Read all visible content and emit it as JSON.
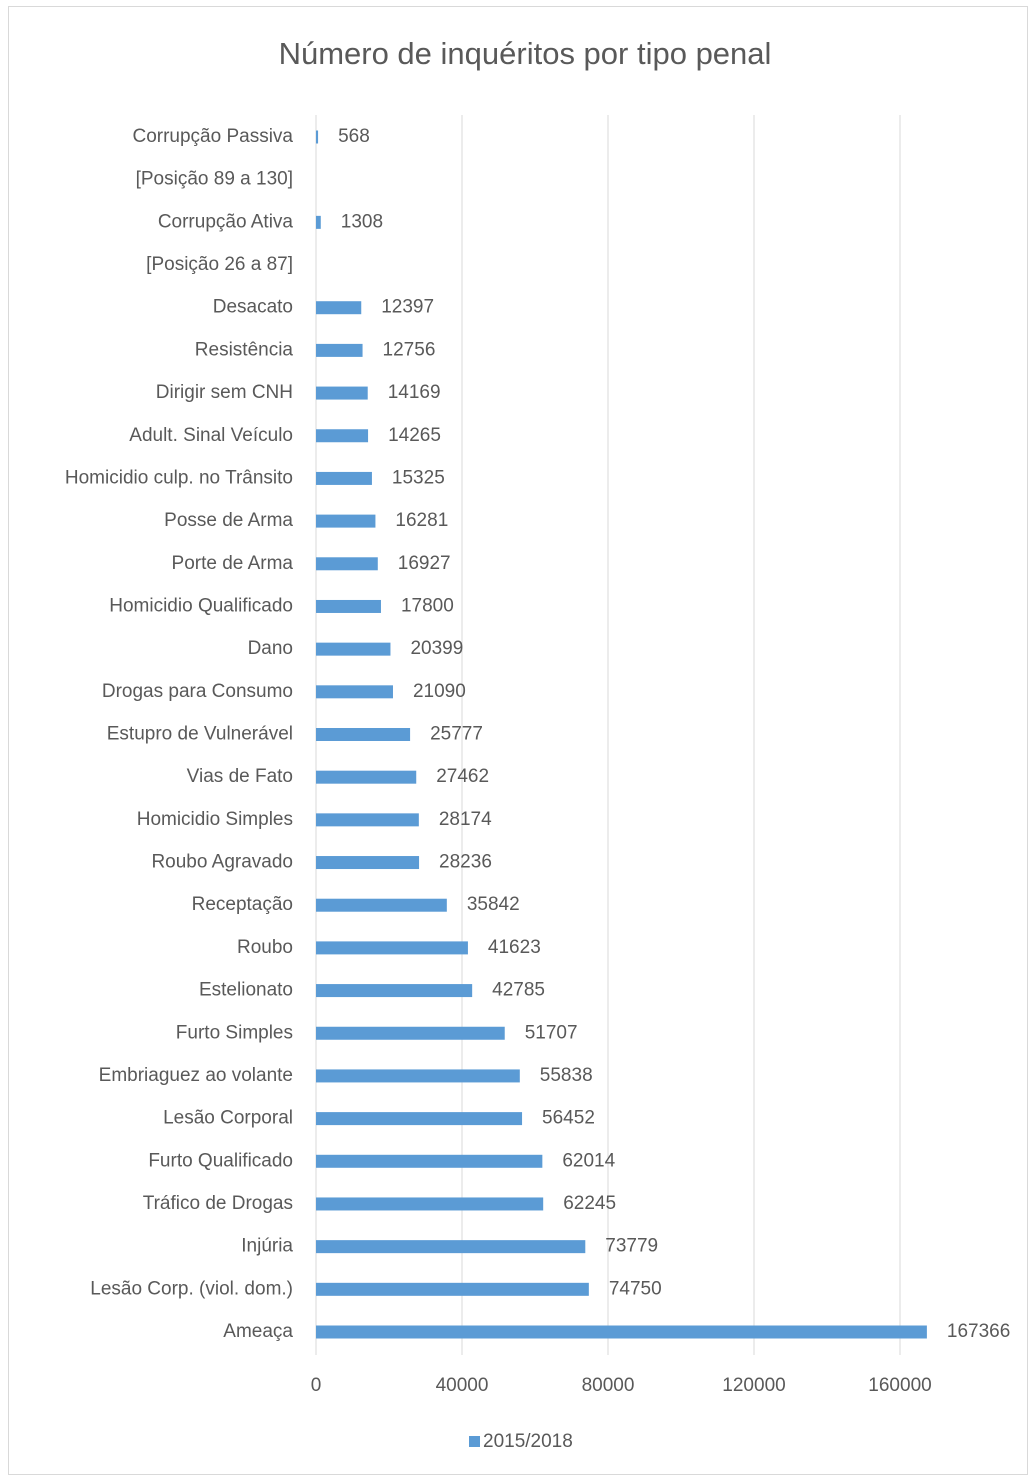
{
  "chart_data": {
    "type": "barh",
    "title": "Número de inquéritos por tipo penal",
    "categories": [
      "Corrupção Passiva",
      "[Posição 89 a 130]",
      "Corrupção Ativa",
      "[Posição 26 a 87]",
      "Desacato",
      "Resistência",
      "Dirigir sem CNH",
      "Adult. Sinal Veículo",
      "Homicidio culp. no Trânsito",
      "Posse de Arma",
      "Porte de Arma",
      "Homicidio Qualificado",
      "Dano",
      "Drogas para Consumo",
      "Estupro de Vulnerável",
      "Vias de Fato",
      "Homicidio Simples",
      "Roubo Agravado",
      "Receptação",
      "Roubo",
      "Estelionato",
      "Furto Simples",
      "Embriaguez ao volante",
      "Lesão Corporal",
      "Furto Qualificado",
      "Tráfico de Drogas",
      "Injúria",
      "Lesão Corp. (viol. dom.)",
      "Ameaça"
    ],
    "series": [
      {
        "name": "2015/2018",
        "color": "#5b9bd5",
        "values": [
          568,
          null,
          1308,
          null,
          12397,
          12756,
          14169,
          14265,
          15325,
          16281,
          16927,
          17800,
          20399,
          21090,
          25777,
          27462,
          28174,
          28236,
          35842,
          41623,
          42785,
          51707,
          55838,
          56452,
          62014,
          62245,
          73779,
          74750,
          167366
        ]
      }
    ],
    "xlim": [
      0,
      180000
    ],
    "xticks": [
      0,
      40000,
      80000,
      120000,
      160000
    ],
    "grid": true,
    "legend": "bottom"
  }
}
